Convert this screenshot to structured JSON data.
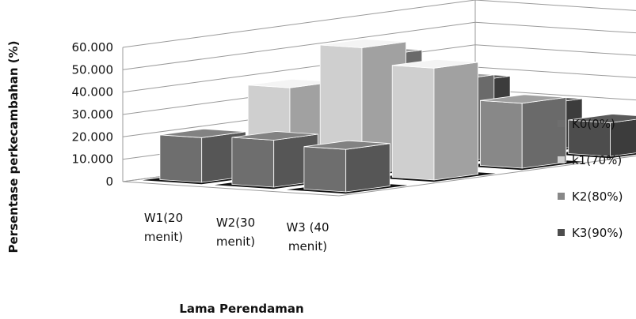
{
  "chart_data": {
    "type": "bar",
    "style": "3d-clustered",
    "title": "",
    "xlabel": "Lama Perendaman",
    "ylabel": "Persentase perkecambahan (%)",
    "categories": [
      "W1(20 menit)",
      "W2(30 menit)",
      "W3 (40 menit)"
    ],
    "category_lines": [
      [
        "W1(20",
        "menit)"
      ],
      [
        "W2(30",
        "menit)"
      ],
      [
        "W3 (40",
        "menit)"
      ]
    ],
    "ylim": [
      0,
      60
    ],
    "yticks": [
      0,
      10,
      20,
      30,
      40,
      50,
      60
    ],
    "ytick_labels": [
      "0",
      "10.000",
      "20.000",
      "30.000",
      "40.000",
      "50.000",
      "60.000"
    ],
    "grid": true,
    "legend_position": "right",
    "series": [
      {
        "name": "K0(0%)",
        "values": [
          20,
          21,
          19
        ],
        "color": "#6e6e6e"
      },
      {
        "name": "k1(70%)",
        "values": [
          37,
          57,
          50
        ],
        "color": "#cfcfcf"
      },
      {
        "name": "K2(80%)",
        "values": [
          46,
          37,
          29
        ],
        "color": "#888888"
      },
      {
        "name": "K3(90%)",
        "values": [
          29,
          21,
          15
        ],
        "color": "#4d4d4d"
      }
    ]
  }
}
